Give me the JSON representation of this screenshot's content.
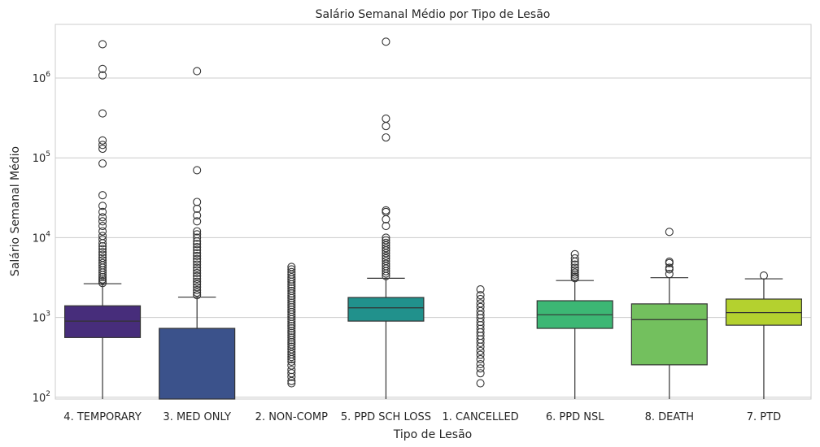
{
  "chart_data": {
    "type": "boxplot",
    "title": "Salário Semanal Médio por Tipo de Lesão",
    "xlabel": "Tipo de Lesão",
    "ylabel": "Salário Semanal Médio",
    "yscale": "log",
    "ylim": [
      95,
      4700000
    ],
    "grid": "horizontal",
    "y_ticks": [
      {
        "value": 100,
        "base": "10",
        "exp": "2"
      },
      {
        "value": 1000,
        "base": "10",
        "exp": "3"
      },
      {
        "value": 10000,
        "base": "10",
        "exp": "4"
      },
      {
        "value": 100000,
        "base": "10",
        "exp": "5"
      },
      {
        "value": 1000000,
        "base": "10",
        "exp": "6"
      }
    ],
    "categories": [
      "4. TEMPORARY",
      "3. MED ONLY",
      "2. NON-COMP",
      "5. PPD SCH LOSS",
      "1. CANCELLED",
      "6. PPD NSL",
      "8. DEATH",
      "7. PTD"
    ],
    "colors": [
      "#472d7b",
      "#3b528b",
      "#2c728e",
      "#21918c",
      "#28ae80",
      "#3cb774",
      "#73c05e",
      "#b4d12f"
    ],
    "boxes": [
      {
        "category": "4. TEMPORARY",
        "whisker_low": 90,
        "q1": 560,
        "median": 900,
        "q3": 1400,
        "whisker_high": 2650,
        "outliers": [
          2650000,
          1300000,
          1080000,
          360000,
          165000,
          145000,
          130000,
          85000,
          34000,
          25000,
          21000,
          18000,
          16000,
          14000,
          12000,
          10500,
          9500,
          8500,
          7800,
          7200,
          6600,
          6100,
          5600,
          5200,
          4800,
          4500,
          4200,
          3900,
          3650,
          3400,
          3200,
          3000,
          2850,
          2700
        ]
      },
      {
        "category": "3. MED ONLY",
        "whisker_low": 90,
        "q1": 90,
        "median": 90,
        "q3": 730,
        "whisker_high": 1800,
        "outliers": [
          1220000,
          70000,
          28000,
          23000,
          19000,
          16000,
          12000,
          11000,
          10000,
          9000,
          8300,
          7600,
          7000,
          6400,
          5900,
          5400,
          5000,
          4600,
          4200,
          3900,
          3600,
          3300,
          3050,
          2800,
          2600,
          2400,
          2200,
          2050,
          1900
        ]
      },
      {
        "category": "2. NON-COMP",
        "whisker_low": null,
        "q1": null,
        "median": null,
        "q3": null,
        "whisker_high": null,
        "outliers": [
          4300,
          4000,
          3700,
          3450,
          3200,
          3000,
          2800,
          2600,
          2450,
          2300,
          2150,
          2000,
          1870,
          1750,
          1640,
          1530,
          1430,
          1340,
          1250,
          1170,
          1090,
          1020,
          950,
          890,
          830,
          780,
          730,
          680,
          640,
          600,
          560,
          520,
          490,
          460,
          430,
          400,
          370,
          345,
          320,
          300,
          280,
          250,
          220,
          200,
          180,
          160,
          150
        ]
      },
      {
        "category": "5. PPD SCH LOSS",
        "whisker_low": 90,
        "q1": 900,
        "median": 1320,
        "q3": 1780,
        "whisker_high": 3100,
        "outliers": [
          2850000,
          310000,
          250000,
          180000,
          22000,
          21000,
          17000,
          14000,
          10000,
          9300,
          8600,
          8000,
          7400,
          6900,
          6400,
          5900,
          5500,
          5100,
          4700,
          4400,
          4100,
          3800,
          3550,
          3300
        ]
      },
      {
        "category": "1. CANCELLED",
        "whisker_low": null,
        "q1": null,
        "median": null,
        "q3": null,
        "whisker_high": null,
        "outliers": [
          2250,
          1900,
          1700,
          1500,
          1350,
          1200,
          1080,
          980,
          880,
          800,
          720,
          650,
          590,
          530,
          480,
          430,
          380,
          340,
          300,
          260,
          230,
          200,
          150
        ]
      },
      {
        "category": "6. PPD NSL",
        "whisker_low": 90,
        "q1": 730,
        "median": 1080,
        "q3": 1620,
        "whisker_high": 2900,
        "outliers": [
          6200,
          5500,
          5000,
          4600,
          4200,
          3900,
          3650,
          3450,
          3250,
          3100
        ]
      },
      {
        "category": "8. DEATH",
        "whisker_low": 90,
        "q1": 255,
        "median": 940,
        "q3": 1480,
        "whisker_high": 3150,
        "outliers": [
          11800,
          5000,
          4800,
          4200,
          4000,
          3500
        ]
      },
      {
        "category": "7. PTD",
        "whisker_low": 90,
        "q1": 800,
        "median": 1150,
        "q3": 1700,
        "whisker_high": 3050,
        "outliers": [
          3350
        ]
      }
    ]
  }
}
